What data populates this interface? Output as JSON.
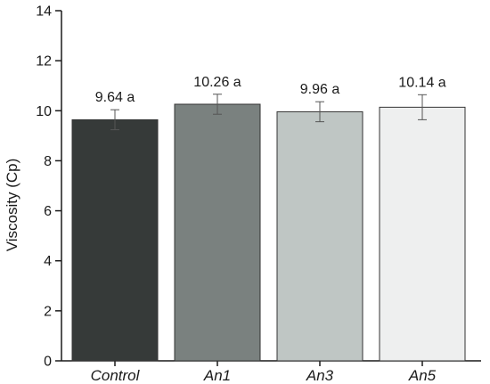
{
  "chart_data": {
    "type": "bar",
    "categories": [
      "Control",
      "An1",
      "An3",
      "An5"
    ],
    "values": [
      9.64,
      10.26,
      9.96,
      10.14
    ],
    "errors": [
      0.4,
      0.4,
      0.4,
      0.5
    ],
    "data_labels": [
      "9.64 a",
      "10.26 a",
      "9.96 a",
      "10.14 a"
    ],
    "bar_colors": [
      "#363a39",
      "#7a817f",
      "#bfc6c4",
      "#eeefef"
    ],
    "xlabel": "",
    "ylabel": "Viscosity (Cp)",
    "ylim": [
      0,
      14
    ],
    "yticks": [
      0,
      2,
      4,
      6,
      8,
      10,
      12,
      14
    ],
    "grid": false
  }
}
